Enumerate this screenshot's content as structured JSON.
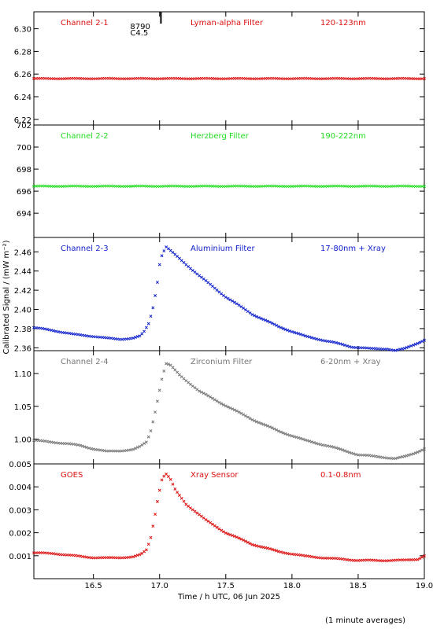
{
  "chart_data": {
    "type": "scatter",
    "x_axis": {
      "label": "Time / h UTC, 06 Jun 2025",
      "range": [
        16.05,
        19.0
      ],
      "ticks": [
        16.5,
        17.0,
        17.5,
        18.0,
        18.5,
        19.0
      ],
      "tick_labels": [
        "16.5",
        "17.0",
        "17.5",
        "18.0",
        "18.5",
        "19.0"
      ]
    },
    "y_axis_label": "Calibrated Signal / (mW m⁻²)",
    "footnote": "(1 minute averages)",
    "event_marker": {
      "time": 17.01,
      "label_top": "8790",
      "label_bottom": "C4.5"
    },
    "panels": [
      {
        "name": "Channel 2-1",
        "filter": "Lyman-alpha Filter",
        "band": "120-123nm",
        "color": "#dd1111",
        "ylim": [
          6.215,
          6.315
        ],
        "yticks": [
          6.22,
          6.24,
          6.26,
          6.28,
          6.3
        ],
        "ytick_labels": [
          "6.22",
          "6.24",
          "6.26",
          "6.28",
          "6.30"
        ],
        "x": [
          16.05,
          19.0
        ],
        "y": [
          6.256,
          6.256
        ]
      },
      {
        "name": "Channel 2-2",
        "filter": "Herzberg Filter",
        "band": "190-222nm",
        "color": "#22dd22",
        "ylim": [
          691.8,
          702.0
        ],
        "yticks": [
          694,
          696,
          698,
          700,
          702
        ],
        "ytick_labels": [
          "694",
          "696",
          "698",
          "700",
          "702"
        ],
        "x": [
          16.05,
          19.0
        ],
        "y": [
          696.45,
          696.45
        ]
      },
      {
        "name": "Channel 2-3",
        "filter": "Aluminium Filter",
        "band": "17-80nm + Xray",
        "color": "#1122cc",
        "ylim": [
          2.357,
          2.475
        ],
        "yticks": [
          2.36,
          2.38,
          2.4,
          2.42,
          2.44,
          2.46
        ],
        "ytick_labels": [
          "2.36",
          "2.38",
          "2.40",
          "2.42",
          "2.44",
          "2.46"
        ],
        "x": [
          16.05,
          16.2,
          16.35,
          16.5,
          16.6,
          16.7,
          16.8,
          16.85,
          16.88,
          16.92,
          16.95,
          16.98,
          17.0,
          17.02,
          17.05,
          17.1,
          17.2,
          17.3,
          17.5,
          17.7,
          17.9,
          18.1,
          18.3,
          18.45,
          18.6,
          18.72,
          18.78,
          18.85,
          18.95,
          19.0
        ],
        "y": [
          2.381,
          2.378,
          2.374,
          2.372,
          2.37,
          2.369,
          2.37,
          2.372,
          2.376,
          2.386,
          2.402,
          2.425,
          2.447,
          2.458,
          2.465,
          2.459,
          2.447,
          2.435,
          2.413,
          2.395,
          2.382,
          2.372,
          2.366,
          2.361,
          2.359,
          2.359,
          2.357,
          2.359,
          2.365,
          2.368
        ]
      },
      {
        "name": "Channel 2-4",
        "filter": "Zirconium Filter",
        "band": "6-20nm + Xray",
        "color": "#777777",
        "ylim": [
          0.962,
          1.135
        ],
        "yticks": [
          1.0,
          1.05,
          1.1
        ],
        "ytick_labels": [
          "1.00",
          "1.05",
          "1.10"
        ],
        "x": [
          16.05,
          16.2,
          16.3,
          16.4,
          16.5,
          16.6,
          16.7,
          16.8,
          16.85,
          16.9,
          16.93,
          16.96,
          16.99,
          17.02,
          17.05,
          17.08,
          17.15,
          17.3,
          17.5,
          17.7,
          17.9,
          18.1,
          18.3,
          18.5,
          18.7,
          18.78,
          18.85,
          18.92,
          19.0
        ],
        "y": [
          0.998,
          0.995,
          0.993,
          0.99,
          0.985,
          0.981,
          0.982,
          0.984,
          0.988,
          0.995,
          1.01,
          1.035,
          1.065,
          1.095,
          1.115,
          1.113,
          1.098,
          1.073,
          1.051,
          1.03,
          1.012,
          0.998,
          0.988,
          0.976,
          0.972,
          0.97,
          0.973,
          0.978,
          0.985
        ]
      },
      {
        "name": "GOES",
        "filter": "Xray Sensor",
        "band": "0.1-0.8nm",
        "color": "#dd1111",
        "ylim": [
          0.0,
          0.005
        ],
        "yticks": [
          0.001,
          0.002,
          0.003,
          0.004,
          0.005
        ],
        "ytick_labels": [
          "0.001",
          "0.002",
          "0.003",
          "0.004",
          "0.005"
        ],
        "x": [
          16.05,
          16.2,
          16.35,
          16.5,
          16.6,
          16.7,
          16.8,
          16.86,
          16.9,
          16.93,
          16.96,
          16.99,
          17.02,
          17.05,
          17.08,
          17.12,
          17.2,
          17.35,
          17.5,
          17.7,
          17.9,
          18.1,
          18.3,
          18.5,
          18.65,
          18.75,
          18.85,
          18.95,
          19.0
        ],
        "y": [
          0.00112,
          0.0011,
          0.001,
          0.00092,
          0.0009,
          0.00092,
          0.00095,
          0.00105,
          0.00125,
          0.0017,
          0.0026,
          0.0036,
          0.0044,
          0.00455,
          0.00435,
          0.00385,
          0.00325,
          0.00255,
          0.002,
          0.0015,
          0.00118,
          0.00098,
          0.00088,
          0.0008,
          0.00079,
          0.0008,
          0.0008,
          0.00085,
          0.001
        ]
      }
    ]
  }
}
